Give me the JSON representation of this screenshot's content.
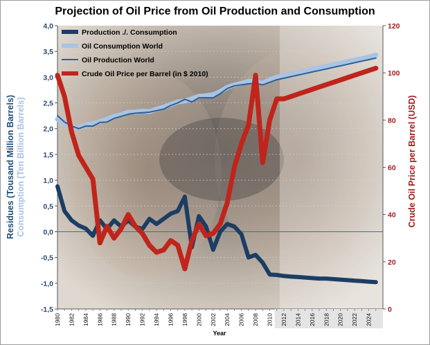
{
  "chart_data": {
    "type": "line",
    "title": "Projection of Oil Price from Oil Production and Consumption",
    "xlabel": "Year",
    "ylabel_left": [
      "Residues (Tousand Million Barrels)",
      "Consumption (Ten Billion Barrels)"
    ],
    "ylabel_right": "Crude Oil Price per Barrel (USD)",
    "x": [
      1980,
      1981,
      1982,
      1983,
      1984,
      1985,
      1986,
      1987,
      1988,
      1989,
      1990,
      1991,
      1992,
      1993,
      1994,
      1995,
      1996,
      1997,
      1998,
      1999,
      2000,
      2001,
      2002,
      2003,
      2004,
      2005,
      2006,
      2007,
      2008,
      2009,
      2010,
      2011,
      2012,
      2013,
      2014,
      2015,
      2016,
      2017,
      2018,
      2019,
      2020,
      2021,
      2022,
      2023,
      2024,
      2025
    ],
    "xticks": [
      1980,
      1982,
      1984,
      1986,
      1988,
      1990,
      1992,
      1994,
      1996,
      1998,
      2000,
      2002,
      2004,
      2006,
      2008,
      2010,
      2012,
      2014,
      2016,
      2018,
      2020,
      2022,
      2024
    ],
    "projection_start": 2011,
    "ylim_left": [
      -1.5,
      4.0
    ],
    "yticks_left": [
      "4,0",
      "3,5",
      "3,0",
      "2,5",
      "2,0",
      "1,5",
      "1,0",
      "0,5",
      "0,0",
      "-0,5",
      "-1,0",
      "-1,5"
    ],
    "ylim_right": [
      0,
      120
    ],
    "yticks_right": [
      "120",
      "100",
      "80",
      "60",
      "40",
      "20",
      "0"
    ],
    "legend_position": "top-left",
    "series": [
      {
        "name": "Production ./. Consumption",
        "axis": "left",
        "color": "#1c3d64",
        "values": [
          0.88,
          0.4,
          0.22,
          0.12,
          0.06,
          -0.08,
          0.22,
          0.05,
          0.22,
          0.1,
          0.22,
          0.1,
          0.05,
          0.25,
          0.15,
          0.25,
          0.35,
          0.4,
          0.68,
          -0.3,
          0.3,
          0.1,
          -0.35,
          0.0,
          0.15,
          0.1,
          -0.05,
          -0.5,
          -0.45,
          -0.6,
          -0.83,
          -0.84,
          -0.86,
          -0.87,
          -0.88,
          -0.89,
          -0.9,
          -0.91,
          -0.91,
          -0.92,
          -0.93,
          -0.94,
          -0.95,
          -0.96,
          -0.97,
          -0.98
        ]
      },
      {
        "name": "Oil Consumption World",
        "axis": "left",
        "color": "#a9c4e3",
        "values": [
          2.18,
          2.1,
          2.03,
          2.02,
          2.08,
          2.1,
          2.14,
          2.18,
          2.24,
          2.27,
          2.32,
          2.32,
          2.34,
          2.33,
          2.38,
          2.42,
          2.47,
          2.52,
          2.54,
          2.58,
          2.63,
          2.64,
          2.66,
          2.72,
          2.8,
          2.85,
          2.88,
          2.92,
          2.92,
          2.88,
          2.95,
          3.0,
          3.03,
          3.06,
          3.09,
          3.12,
          3.15,
          3.18,
          3.21,
          3.24,
          3.27,
          3.3,
          3.33,
          3.36,
          3.39,
          3.43
        ]
      },
      {
        "name": "Oil Production World",
        "axis": "left",
        "color": "#2c5f96",
        "values": [
          2.25,
          2.13,
          2.05,
          2.0,
          2.05,
          2.05,
          2.12,
          2.13,
          2.2,
          2.24,
          2.28,
          2.3,
          2.31,
          2.32,
          2.35,
          2.38,
          2.45,
          2.5,
          2.57,
          2.52,
          2.6,
          2.6,
          2.6,
          2.68,
          2.78,
          2.83,
          2.85,
          2.87,
          2.88,
          2.85,
          2.9,
          2.95,
          2.98,
          3.01,
          3.04,
          3.07,
          3.1,
          3.13,
          3.16,
          3.19,
          3.22,
          3.25,
          3.28,
          3.31,
          3.34,
          3.37
        ]
      },
      {
        "name": "Crude Oil Price per Barrel (in $ 2010)",
        "axis": "right",
        "color": "#c0241b",
        "values": [
          99,
          90,
          75,
          65,
          60,
          55,
          28,
          35,
          30,
          34,
          40,
          35,
          32,
          27,
          24,
          25,
          29,
          27,
          17,
          29,
          36,
          31,
          32,
          36,
          45,
          60,
          70,
          78,
          99,
          62,
          80,
          89,
          89,
          90,
          91,
          92,
          93,
          94,
          95,
          96,
          97,
          98,
          99,
          100,
          101,
          102
        ]
      }
    ]
  }
}
